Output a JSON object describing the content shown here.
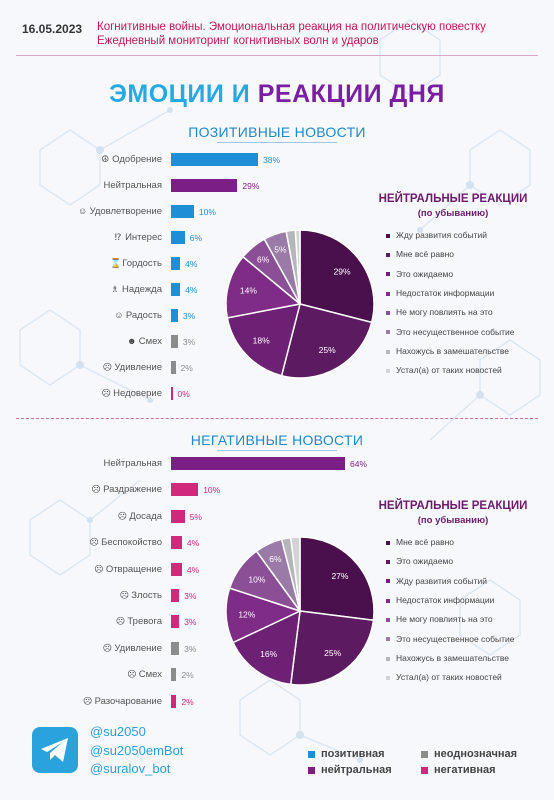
{
  "header": {
    "date": "16.05.2023",
    "line1": "Когнитивные войны. Эмоциональная реакция на политическую повестку",
    "line2": "Ежедневный мониторинг когнитивных волн и ударов"
  },
  "title_part1": "ЭМОЦИИ И",
  "title_part2": "РЕАКЦИИ ДНЯ",
  "colors": {
    "positive": "#1e8fd6",
    "neutral": "#7b1f86",
    "ambiguous": "#8c8c8c",
    "negative": "#d0287a",
    "pie": [
      "#4a0f4d",
      "#5c1a60",
      "#6d2174",
      "#7e2c86",
      "#8b4f96",
      "#9a7aa6",
      "#b5b5bb",
      "#d3d3d6"
    ]
  },
  "chart_data": [
    {
      "type": "bar",
      "title": "ПОЗИТИВНЫЕ НОВОСТИ",
      "categories": [
        "Одобрение",
        "Нейтральная",
        "Удовлетворение",
        "Интерес",
        "Гордость",
        "Надежда",
        "Радость",
        "Смех",
        "Удивление",
        "Недоверие"
      ],
      "icons": [
        "☮",
        "",
        "☺",
        "⁉",
        "⌛",
        "♗",
        "☺",
        "☻",
        "☹",
        "☹"
      ],
      "values": [
        38,
        29,
        10,
        6,
        4,
        4,
        3,
        3,
        2,
        0
      ],
      "value_labels": [
        "38%",
        "29%",
        "10%",
        "6%",
        "4%",
        "4%",
        "3%",
        "3%",
        "2%",
        "0%"
      ],
      "kinds": [
        "positive",
        "neutral",
        "positive",
        "positive",
        "positive",
        "positive",
        "positive",
        "ambiguous",
        "ambiguous",
        "negative"
      ]
    },
    {
      "type": "pie",
      "title": "НЕЙТРАЛЬНЫЕ РЕАКЦИИ",
      "subtitle": "(по убыванию)",
      "labels": [
        "Жду развития событий",
        "Мне всё равно",
        "Это ожидаемо",
        "Недостаток информации",
        "Не могу повлиять на это",
        "Это несущественное событие",
        "Нахожусь в замешательстве",
        "Устал(а) от таких новостей"
      ],
      "values": [
        29,
        25,
        18,
        14,
        6,
        5,
        2,
        1
      ],
      "value_labels": [
        "29%",
        "25%",
        "18%",
        "14%",
        "6%",
        "5%",
        "",
        ""
      ]
    },
    {
      "type": "bar",
      "title": "НЕГАТИВНЫЕ НОВОСТИ",
      "categories": [
        "Нейтральная",
        "Раздражение",
        "Досада",
        "Беспокойство",
        "Отвращение",
        "Злость",
        "Тревога",
        "Удивление",
        "Смех",
        "Разочарование"
      ],
      "icons": [
        "",
        "☹",
        "☹",
        "☹",
        "☹",
        "☹",
        "☹",
        "☹",
        "☹",
        "☹"
      ],
      "values": [
        64,
        10,
        5,
        4,
        4,
        3,
        3,
        3,
        2,
        2
      ],
      "value_labels": [
        "64%",
        "10%",
        "5%",
        "4%",
        "4%",
        "3%",
        "3%",
        "3%",
        "2%",
        "2%"
      ],
      "kinds": [
        "neutral",
        "negative",
        "negative",
        "negative",
        "negative",
        "negative",
        "negative",
        "ambiguous",
        "ambiguous",
        "negative"
      ]
    },
    {
      "type": "pie",
      "title": "НЕЙТРАЛЬНЫЕ РЕАКЦИИ",
      "subtitle": "(по убыванию)",
      "labels": [
        "Мне всё равно",
        "Это ожидаемо",
        "Жду развития событий",
        "Недостаток информации",
        "Не могу повлиять на это",
        "Это несущественное событие",
        "Нахожусь в замешательстве",
        "Устал(а) от таких новостей"
      ],
      "values": [
        27,
        25,
        16,
        12,
        10,
        6,
        2,
        2
      ],
      "value_labels": [
        "27%",
        "25%",
        "16%",
        "12%",
        "10%",
        "6%",
        "",
        ""
      ]
    }
  ],
  "footer": {
    "handles": [
      "@su2050",
      "@su2050emBot",
      "@suralov_bot"
    ],
    "legend": [
      {
        "label": "позитивная",
        "kind": "positive"
      },
      {
        "label": "неоднозначная",
        "kind": "ambiguous"
      },
      {
        "label": "нейтральная",
        "kind": "neutral"
      },
      {
        "label": "негативная",
        "kind": "negative"
      }
    ]
  }
}
